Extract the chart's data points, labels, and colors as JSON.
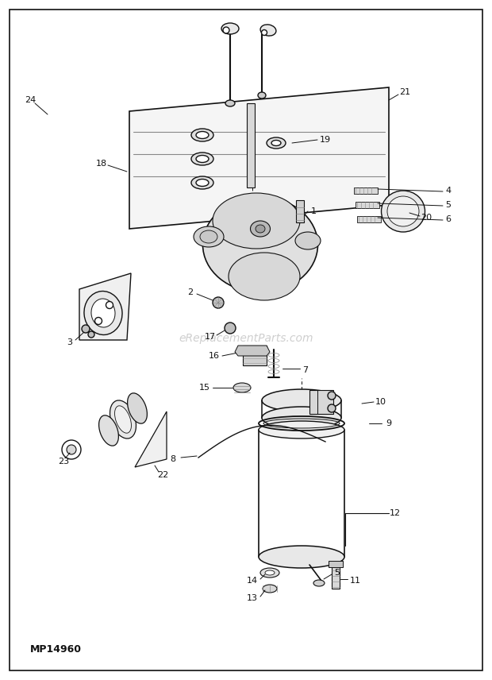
{
  "watermark": "eReplacementParts.com",
  "part_number": "MP14960",
  "bg_color": "#ffffff",
  "border_color": "#111111",
  "fig_width": 6.2,
  "fig_height": 8.56,
  "dpi": 100,
  "line_color": "#111111",
  "lw": 1.0
}
